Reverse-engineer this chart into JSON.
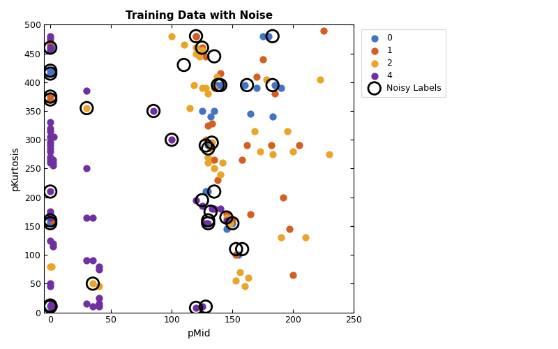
{
  "title": "Training Data with Noise",
  "xlabel": "pMid",
  "ylabel": "pKurtosis",
  "xlim": [
    -5,
    250
  ],
  "ylim": [
    0,
    500
  ],
  "xticks": [
    0,
    50,
    100,
    150,
    200,
    250
  ],
  "yticks": [
    0,
    50,
    100,
    150,
    200,
    250,
    300,
    350,
    400,
    450,
    500
  ],
  "colors": {
    "0": "#4472c4",
    "1": "#d45f21",
    "2": "#eaa427",
    "4": "#7030a0"
  },
  "class0": {
    "x": [
      0,
      0,
      0,
      0,
      0,
      0,
      1,
      1,
      1,
      2,
      2,
      2,
      3,
      120,
      125,
      128,
      130,
      130,
      132,
      135,
      138,
      140,
      145,
      150,
      155,
      160,
      165,
      170,
      175,
      180,
      183,
      185,
      190
    ],
    "y": [
      10,
      12,
      155,
      160,
      415,
      420,
      8,
      155,
      460,
      8,
      155,
      420,
      12,
      480,
      350,
      210,
      210,
      290,
      340,
      350,
      395,
      395,
      145,
      155,
      100,
      395,
      345,
      390,
      480,
      480,
      340,
      395,
      390
    ]
  },
  "class1": {
    "x": [
      0,
      0,
      0,
      1,
      2,
      2,
      3,
      120,
      125,
      128,
      130,
      133,
      135,
      138,
      140,
      145,
      150,
      153,
      158,
      162,
      165,
      170,
      175,
      182,
      185,
      192,
      197,
      200,
      205,
      225
    ],
    "y": [
      370,
      375,
      465,
      8,
      160,
      163,
      10,
      480,
      460,
      445,
      325,
      328,
      265,
      230,
      415,
      170,
      160,
      100,
      265,
      290,
      170,
      410,
      440,
      290,
      380,
      200,
      145,
      65,
      290,
      490
    ]
  },
  "class2": {
    "x": [
      0,
      1,
      30,
      35,
      40,
      100,
      110,
      115,
      118,
      120,
      120,
      123,
      125,
      125,
      128,
      128,
      130,
      130,
      130,
      132,
      133,
      135,
      135,
      137,
      140,
      142,
      145,
      148,
      153,
      156,
      160,
      163,
      168,
      173,
      178,
      183,
      190,
      195,
      200,
      210,
      222,
      230
    ],
    "y": [
      80,
      80,
      355,
      50,
      45,
      480,
      465,
      355,
      395,
      450,
      460,
      445,
      390,
      455,
      390,
      300,
      380,
      260,
      270,
      285,
      295,
      250,
      390,
      410,
      240,
      260,
      165,
      155,
      55,
      70,
      45,
      60,
      315,
      280,
      405,
      275,
      130,
      315,
      280,
      130,
      405,
      275
    ]
  },
  "class4": {
    "x": [
      0,
      0,
      0,
      0,
      0,
      0,
      0,
      0,
      0,
      0,
      0,
      0,
      0,
      0,
      0,
      0,
      0,
      0,
      0,
      0,
      0,
      0,
      1,
      1,
      1,
      1,
      1,
      2,
      2,
      2,
      2,
      2,
      2,
      3,
      3,
      3,
      30,
      30,
      30,
      30,
      30,
      35,
      35,
      35,
      40,
      40,
      40,
      40,
      40,
      85,
      100,
      120,
      120,
      125,
      125,
      128,
      130,
      133,
      135,
      140,
      145
    ],
    "y": [
      480,
      475,
      460,
      455,
      330,
      320,
      315,
      305,
      295,
      290,
      285,
      280,
      270,
      265,
      260,
      210,
      175,
      170,
      165,
      125,
      50,
      45,
      10,
      12,
      15,
      10,
      8,
      265,
      260,
      255,
      120,
      115,
      10,
      305,
      10,
      12,
      385,
      250,
      165,
      90,
      15,
      165,
      90,
      10,
      80,
      75,
      25,
      15,
      10,
      350,
      300,
      8,
      195,
      10,
      185,
      155,
      155,
      180,
      180,
      180,
      160
    ]
  },
  "noisy": [
    [
      0,
      10
    ],
    [
      0,
      12
    ],
    [
      0,
      155
    ],
    [
      0,
      160
    ],
    [
      0,
      415
    ],
    [
      0,
      420
    ],
    [
      0,
      210
    ],
    [
      0,
      460
    ],
    [
      0,
      370
    ],
    [
      0,
      375
    ],
    [
      30,
      355
    ],
    [
      35,
      50
    ],
    [
      85,
      350
    ],
    [
      100,
      300
    ],
    [
      110,
      430
    ],
    [
      120,
      8
    ],
    [
      120,
      480
    ],
    [
      125,
      195
    ],
    [
      125,
      460
    ],
    [
      128,
      10
    ],
    [
      128,
      290
    ],
    [
      130,
      155
    ],
    [
      130,
      160
    ],
    [
      130,
      285
    ],
    [
      132,
      175
    ],
    [
      133,
      295
    ],
    [
      135,
      210
    ],
    [
      135,
      445
    ],
    [
      138,
      395
    ],
    [
      140,
      395
    ],
    [
      145,
      165
    ],
    [
      150,
      155
    ],
    [
      153,
      110
    ],
    [
      158,
      110
    ],
    [
      162,
      395
    ],
    [
      183,
      480
    ],
    [
      183,
      395
    ]
  ]
}
